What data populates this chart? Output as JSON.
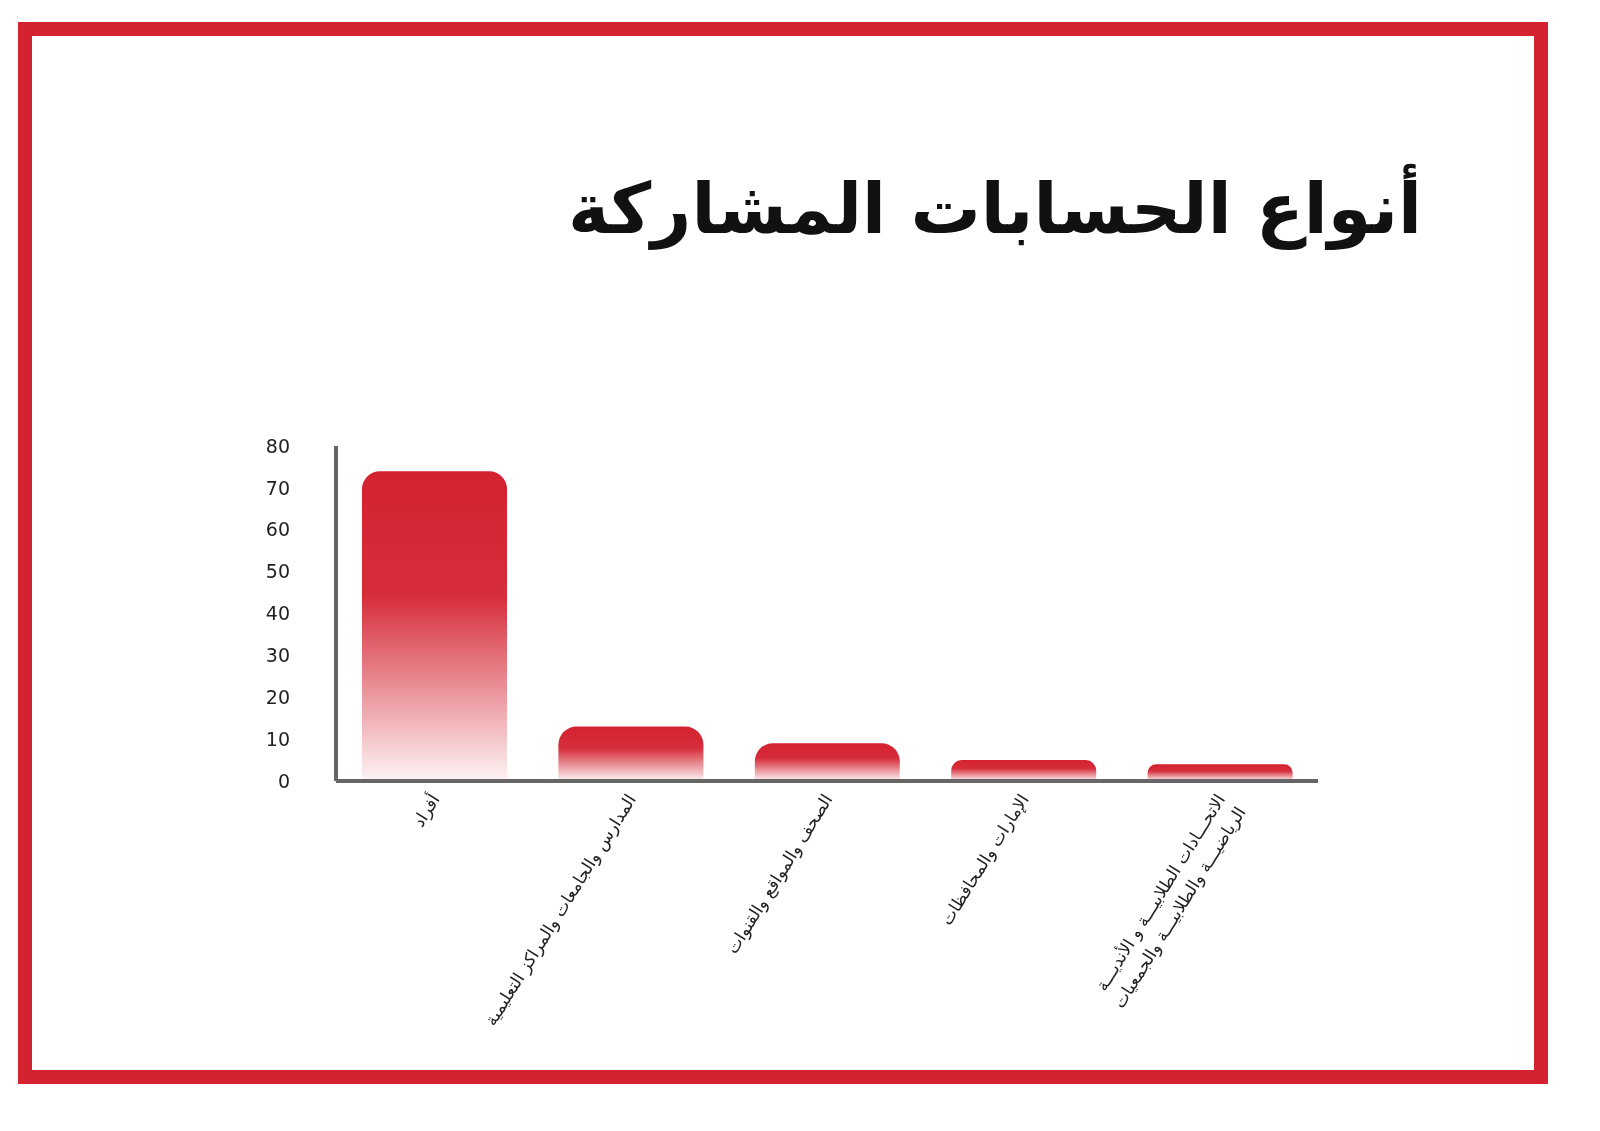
{
  "chart_data": {
    "type": "bar",
    "title": "أنواع الحسابات المشاركة",
    "categories": [
      "أفراد",
      "المدارس والجامعات والمراكز التعليمية",
      "الصحف والمواقع والقنوات",
      "الإمارات والمحافظات",
      "الاتحـــادات الطلابيـــة و الأنديـــة الرياضيـــة والطلابيـــة والجمعيات"
    ],
    "values": [
      74,
      13,
      9,
      5,
      4
    ],
    "color": "#d42230",
    "ylim": [
      0,
      80
    ],
    "yticks": [
      0,
      10,
      20,
      30,
      40,
      50,
      60,
      70,
      80
    ]
  }
}
